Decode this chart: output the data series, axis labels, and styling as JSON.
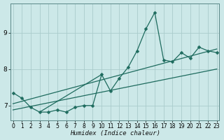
{
  "xlabel": "Humidex (Indice chaleur)",
  "bg_color": "#cce8e8",
  "grid_color": "#aacccc",
  "line_color": "#1e6b5e",
  "x_values": [
    0,
    1,
    2,
    3,
    4,
    5,
    6,
    7,
    8,
    9,
    10,
    11,
    12,
    13,
    14,
    15,
    16,
    17,
    18,
    19,
    20,
    21,
    22,
    23
  ],
  "y_values": [
    7.35,
    7.2,
    6.95,
    6.82,
    6.82,
    6.88,
    6.82,
    6.95,
    7.0,
    7.0,
    7.85,
    7.4,
    7.75,
    8.05,
    8.5,
    9.1,
    9.55,
    8.25,
    8.2,
    8.45,
    8.3,
    8.6,
    8.5,
    8.45
  ],
  "ylim": [
    6.6,
    9.8
  ],
  "xlim": [
    -0.3,
    23.3
  ],
  "yticks": [
    7,
    8,
    9
  ],
  "xticks": [
    0,
    1,
    2,
    3,
    4,
    5,
    6,
    7,
    8,
    9,
    10,
    11,
    12,
    13,
    14,
    15,
    16,
    17,
    18,
    19,
    20,
    21,
    22,
    23
  ],
  "trend1_x": [
    0,
    23
  ],
  "trend1_y": [
    6.88,
    8.0
  ],
  "trend2_x": [
    0,
    23
  ],
  "trend2_y": [
    7.05,
    8.55
  ],
  "trend3_x": [
    3,
    10
  ],
  "trend3_y": [
    6.82,
    7.85
  ],
  "marker_size": 2.5,
  "linewidth": 0.9,
  "tick_fontsize": 5.5,
  "xlabel_fontsize": 6.5
}
